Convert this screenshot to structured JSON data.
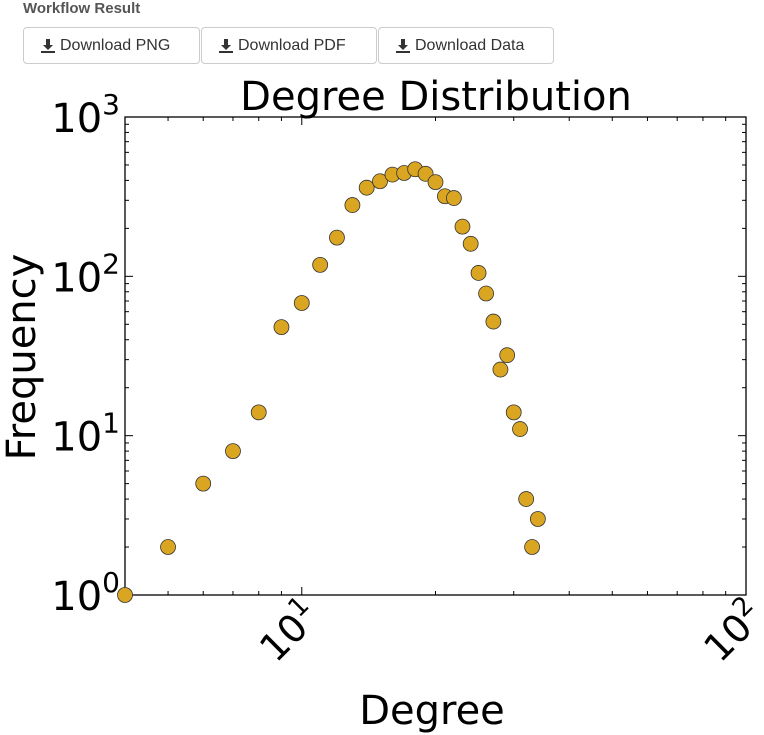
{
  "header": {
    "title": "Workflow Result"
  },
  "buttons": [
    {
      "label": "Download PNG",
      "icon": "download-icon"
    },
    {
      "label": "Download PDF",
      "icon": "download-icon"
    },
    {
      "label": "Download Data",
      "icon": "download-icon"
    }
  ],
  "chart_data": {
    "type": "scatter",
    "title": "Degree Distribution",
    "xlabel": "Degree",
    "ylabel": "Frequency",
    "xscale": "log",
    "yscale": "log",
    "xlim": [
      4,
      100
    ],
    "ylim": [
      1,
      1000
    ],
    "grid": false,
    "marker_color": "#DAA520",
    "x_ticks": [
      {
        "base": "10",
        "exp": "1",
        "value": 10
      },
      {
        "base": "10",
        "exp": "2",
        "value": 100
      }
    ],
    "y_ticks": [
      {
        "base": "10",
        "exp": "0",
        "value": 1
      },
      {
        "base": "10",
        "exp": "1",
        "value": 10
      },
      {
        "base": "10",
        "exp": "2",
        "value": 100
      },
      {
        "base": "10",
        "exp": "3",
        "value": 1000
      }
    ],
    "series": [
      {
        "x": [
          4,
          5,
          6,
          7,
          8,
          9,
          10,
          11,
          12,
          13,
          14,
          15,
          16,
          17,
          18,
          19,
          20,
          21,
          22,
          23,
          24,
          25,
          26,
          27,
          28,
          29,
          30,
          31,
          32,
          33,
          34
        ],
        "y": [
          1,
          2,
          5,
          8,
          14,
          48,
          68,
          118,
          175,
          280,
          360,
          395,
          435,
          445,
          470,
          440,
          390,
          318,
          310,
          205,
          160,
          105,
          78,
          52,
          26,
          32,
          14,
          11,
          4,
          2,
          3
        ]
      }
    ]
  }
}
